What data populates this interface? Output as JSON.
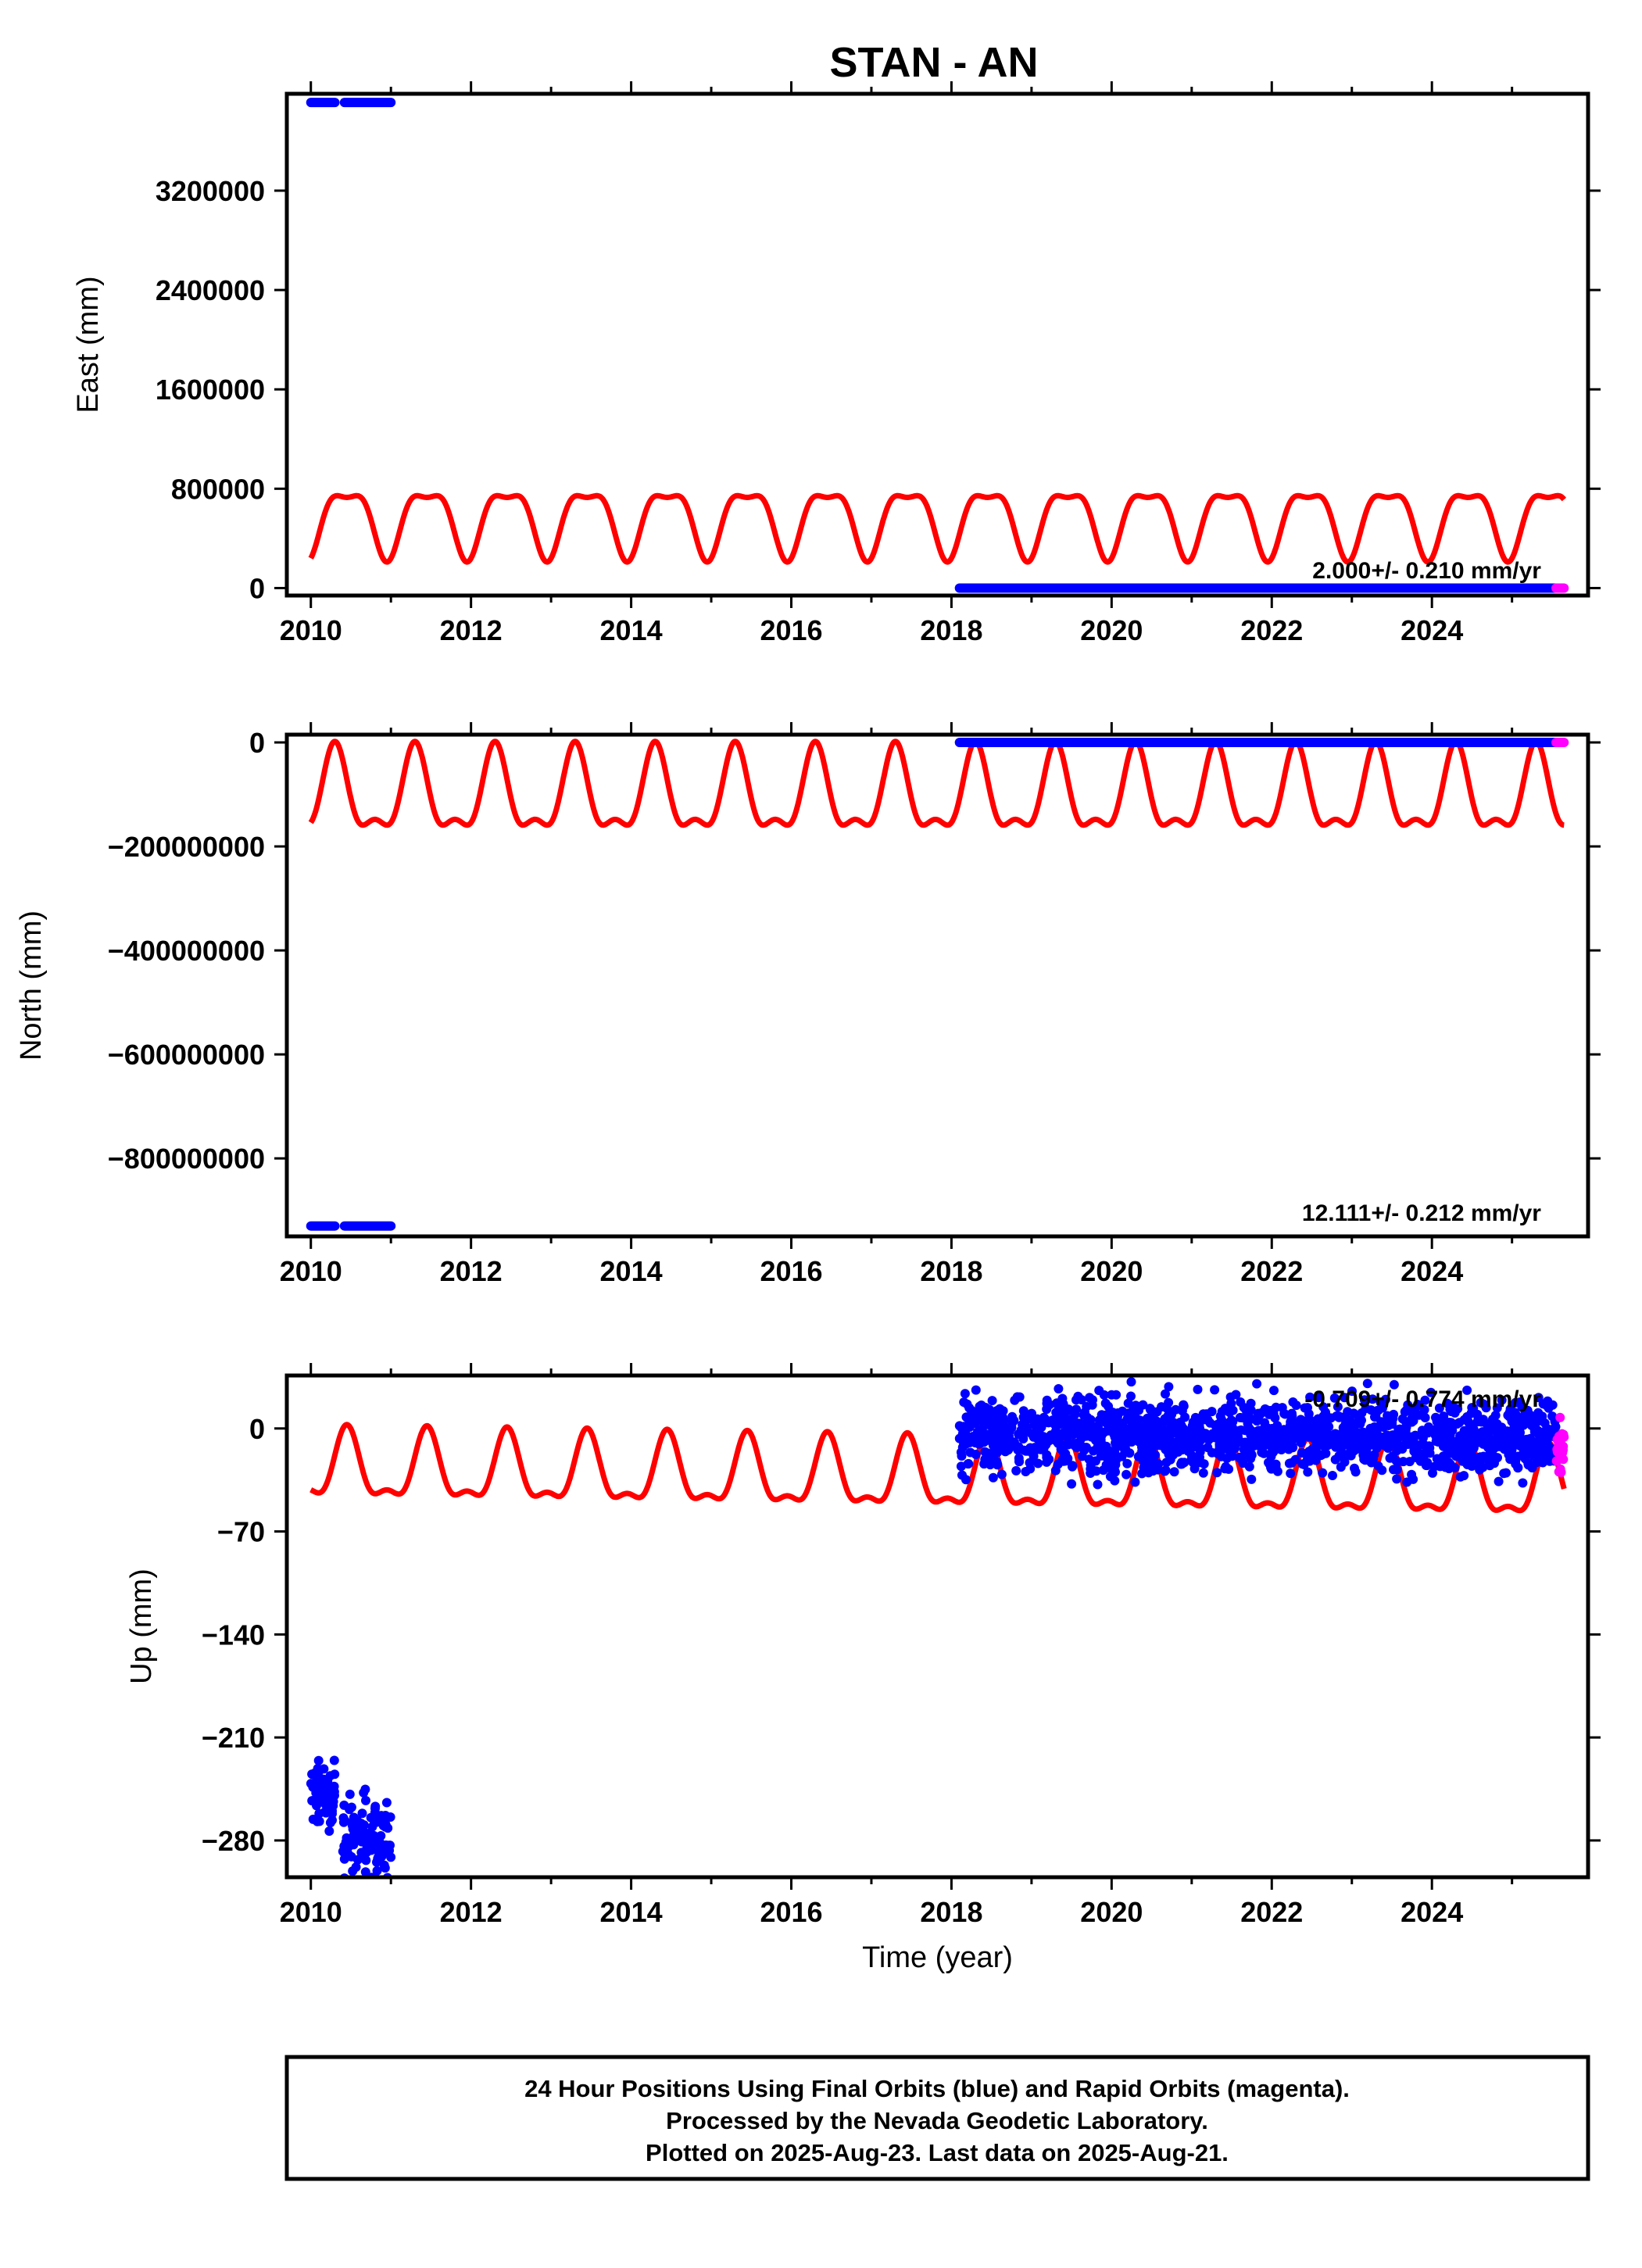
{
  "title": "STAN - AN",
  "colors": {
    "final": "#0000ff",
    "rapid": "#ff00ff",
    "model": "#ff0000",
    "frame": "#000000"
  },
  "footer": {
    "lines": [
      "24 Hour Positions Using Final Orbits (blue) and Rapid Orbits (magenta).",
      "Processed by the Nevada Geodetic Laboratory.",
      "Plotted on 2025-Aug-23. Last data on 2025-Aug-21."
    ]
  },
  "chart_data": [
    {
      "type": "scatter",
      "name": "east",
      "ylabel": "East (mm)",
      "xlabel": "",
      "xlim": [
        2009.7,
        2025.95
      ],
      "ylim": [
        -60000,
        3980000
      ],
      "x_ticks": [
        2010,
        2012,
        2014,
        2016,
        2018,
        2020,
        2022,
        2024
      ],
      "y_ticks": [
        0,
        800000,
        1600000,
        2400000,
        3200000
      ],
      "y_tick_labels": [
        "0",
        "800000",
        "1600000",
        "2400000",
        "3200000"
      ],
      "rate_label": "2.000+/- 0.210 mm/yr",
      "model": {
        "offset": 560000,
        "amplitude_annual": 260000,
        "amplitude_semiannual": -90000,
        "phase_year": 2010.45,
        "x_start": 2010.0,
        "x_end": 2025.65
      },
      "final_segments": [
        {
          "x_start": 2010.0,
          "x_end": 2010.3,
          "y": 3910000
        },
        {
          "x_start": 2010.42,
          "x_end": 2011.0,
          "y": 3910000
        },
        {
          "x_start": 2018.1,
          "x_end": 2025.55,
          "y": 0
        }
      ],
      "rapid_segments": [
        {
          "x_start": 2025.55,
          "x_end": 2025.65,
          "y": 0
        }
      ]
    },
    {
      "type": "scatter",
      "name": "north",
      "ylabel": "North (mm)",
      "xlabel": "",
      "xlim": [
        2009.7,
        2025.95
      ],
      "ylim": [
        -950000000,
        15000000
      ],
      "x_ticks": [
        2010,
        2012,
        2014,
        2016,
        2018,
        2020,
        2022,
        2024
      ],
      "y_ticks": [
        0,
        -200000000,
        -400000000,
        -600000000,
        -800000000
      ],
      "y_tick_labels": [
        "0",
        "−200000000",
        "−400000000",
        "−600000000",
        "−800000000"
      ],
      "rate_label": "12.111+/- 0.212 mm/yr",
      "model": {
        "offset": -105000000,
        "amplitude_annual": 75000000,
        "amplitude_semiannual": 32000000,
        "phase_year": 2010.3,
        "x_start": 2010.0,
        "x_end": 2025.65
      },
      "final_segments": [
        {
          "x_start": 2010.0,
          "x_end": 2010.3,
          "y": -930000000
        },
        {
          "x_start": 2010.42,
          "x_end": 2011.0,
          "y": -930000000
        },
        {
          "x_start": 2018.1,
          "x_end": 2025.55,
          "y": 0
        }
      ],
      "rapid_segments": [
        {
          "x_start": 2025.55,
          "x_end": 2025.65,
          "y": 0
        }
      ]
    },
    {
      "type": "scatter",
      "name": "up",
      "ylabel": "Up (mm)",
      "xlabel": "Time (year)",
      "xlim": [
        2009.7,
        2025.95
      ],
      "ylim": [
        -305,
        36
      ],
      "x_ticks": [
        2010,
        2012,
        2014,
        2016,
        2018,
        2020,
        2022,
        2024
      ],
      "y_ticks": [
        0,
        -70,
        -140,
        -210,
        -280
      ],
      "y_tick_labels": [
        "0",
        "−70",
        "−140",
        "−210",
        "−280"
      ],
      "rate_label": "-0.709+/- 0.774 mm/yr",
      "model": {
        "offset": -28,
        "amplitude_annual": 22,
        "amplitude_semiannual": 9,
        "trend_per_year": -0.8,
        "phase_year": 2010.45,
        "x_start": 2010.0,
        "x_end": 2025.65
      },
      "final_clusters": [
        {
          "x_start": 2010.0,
          "x_end": 2010.3,
          "y_center": -250,
          "spread": 22,
          "count": 70
        },
        {
          "x_start": 2010.4,
          "x_end": 2011.0,
          "y_center": -277,
          "spread": 28,
          "count": 110
        },
        {
          "x_start": 2018.1,
          "x_end": 2025.55,
          "y_center": -5,
          "spread": 26,
          "count": 1500
        }
      ],
      "rapid_clusters": [
        {
          "x_start": 2025.55,
          "x_end": 2025.65,
          "y_center": -10,
          "spread": 18,
          "count": 25
        }
      ]
    }
  ]
}
